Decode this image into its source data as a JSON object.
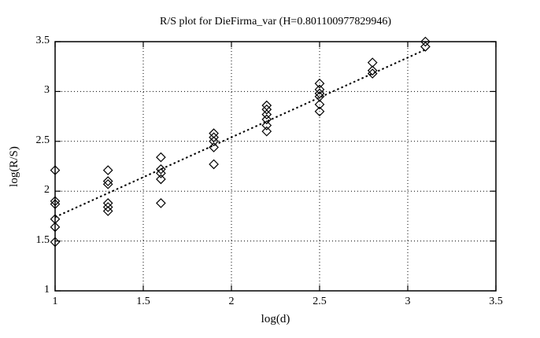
{
  "figure": {
    "background": "#ffffff",
    "foreground": "#000000",
    "grid_color": "#000000"
  },
  "chart_data": {
    "type": "scatter",
    "title": "R/S plot for DieFirma_var (H=0.801100977829946)",
    "xlabel": "log(d)",
    "ylabel": "log(R/S)",
    "xlim": [
      1,
      3.5
    ],
    "ylim": [
      1,
      3.5
    ],
    "x_ticks": [
      1,
      1.5,
      2,
      2.5,
      3,
      3.5
    ],
    "y_ticks": [
      1,
      1.5,
      2,
      2.5,
      3,
      3.5
    ],
    "grid": true,
    "legend": "none",
    "marker": "open-diamond",
    "marker_color": "#000000",
    "hurst_exponent": 0.801100977829946,
    "points": [
      {
        "x": 1.0,
        "y": 2.21
      },
      {
        "x": 1.0,
        "y": 1.9
      },
      {
        "x": 1.0,
        "y": 1.87
      },
      {
        "x": 1.0,
        "y": 1.72
      },
      {
        "x": 1.0,
        "y": 1.64
      },
      {
        "x": 1.0,
        "y": 1.49
      },
      {
        "x": 1.3,
        "y": 2.21
      },
      {
        "x": 1.3,
        "y": 2.1
      },
      {
        "x": 1.3,
        "y": 2.07
      },
      {
        "x": 1.3,
        "y": 1.88
      },
      {
        "x": 1.3,
        "y": 1.84
      },
      {
        "x": 1.3,
        "y": 1.8
      },
      {
        "x": 1.6,
        "y": 2.34
      },
      {
        "x": 1.6,
        "y": 2.22
      },
      {
        "x": 1.6,
        "y": 2.18
      },
      {
        "x": 1.6,
        "y": 2.12
      },
      {
        "x": 1.6,
        "y": 1.88
      },
      {
        "x": 1.9,
        "y": 2.58
      },
      {
        "x": 1.9,
        "y": 2.54
      },
      {
        "x": 1.9,
        "y": 2.5
      },
      {
        "x": 1.9,
        "y": 2.44
      },
      {
        "x": 1.9,
        "y": 2.27
      },
      {
        "x": 2.2,
        "y": 2.86
      },
      {
        "x": 2.2,
        "y": 2.82
      },
      {
        "x": 2.2,
        "y": 2.77
      },
      {
        "x": 2.2,
        "y": 2.72
      },
      {
        "x": 2.2,
        "y": 2.66
      },
      {
        "x": 2.2,
        "y": 2.6
      },
      {
        "x": 2.5,
        "y": 3.08
      },
      {
        "x": 2.5,
        "y": 3.02
      },
      {
        "x": 2.5,
        "y": 2.98
      },
      {
        "x": 2.5,
        "y": 2.95
      },
      {
        "x": 2.5,
        "y": 2.87
      },
      {
        "x": 2.5,
        "y": 2.8
      },
      {
        "x": 2.8,
        "y": 3.29
      },
      {
        "x": 2.8,
        "y": 3.21
      },
      {
        "x": 2.8,
        "y": 3.18
      },
      {
        "x": 3.1,
        "y": 3.5
      },
      {
        "x": 3.1,
        "y": 3.45
      }
    ],
    "fit_line": {
      "x1": 1.0,
      "y1": 1.74,
      "x2": 3.1,
      "y2": 3.42,
      "style": "dotted"
    }
  }
}
